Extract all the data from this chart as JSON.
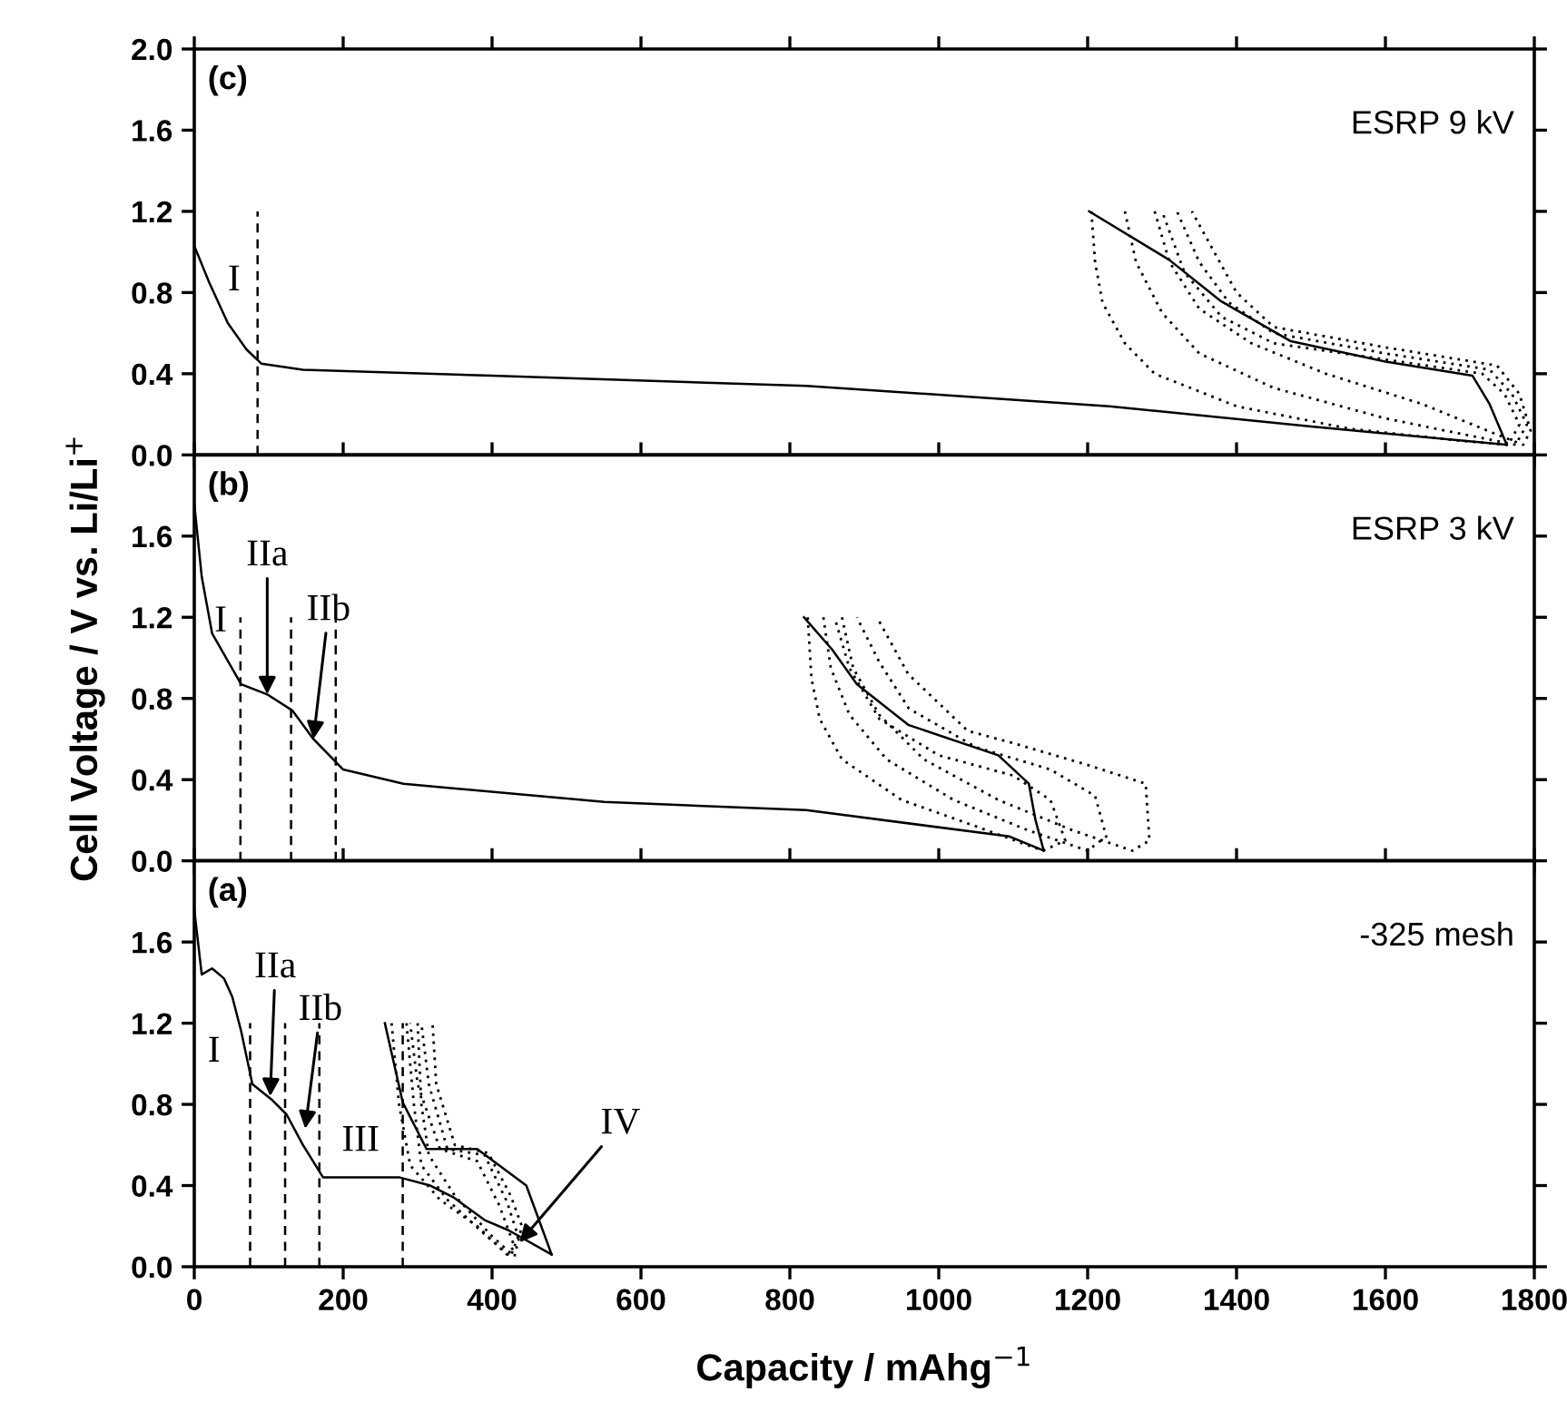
{
  "chart_data": [
    {
      "type": "line",
      "xlim": [
        0,
        1800
      ],
      "xticks": [
        0,
        200,
        400,
        600,
        800,
        1000,
        1200,
        1400,
        1600,
        1800
      ],
      "ylim": [
        0,
        2.0
      ],
      "yticks": [
        {
          "value": 0,
          "label": "0.0"
        },
        {
          "value": 0.4,
          "label": "0.4"
        },
        {
          "value": 0.8,
          "label": "0.8"
        },
        {
          "value": 1.2,
          "label": "1.2"
        },
        {
          "value": 1.6,
          "label": "1.6"
        },
        {
          "value": 2.0,
          "label": "2.0"
        }
      ],
      "tick_labels": "y",
      "legend": false,
      "grid": false,
      "annotations": [
        "(c)",
        "ESRP 9 kV",
        "I"
      ],
      "series": [
        {
          "color": "#000000",
          "line_style": "solid",
          "x": [
            0,
            20,
            45,
            70,
            90,
            146,
            400,
            822,
            1229,
            1500,
            1763
          ],
          "values": [
            1.03,
            0.85,
            0.65,
            0.52,
            0.45,
            0.42,
            0.39,
            0.34,
            0.24,
            0.14,
            0.05
          ]
        },
        {
          "color": "#000000",
          "line_style": "solid",
          "x": [
            1763,
            1740,
            1717,
            1600,
            1473,
            1378,
            1310,
            1202
          ],
          "values": [
            0.05,
            0.25,
            0.39,
            0.46,
            0.56,
            0.76,
            0.96,
            1.2
          ]
        },
        {
          "color": "#000000",
          "line_style": "dotted",
          "x": [
            1205,
            1210,
            1220,
            1250,
            1290,
            1400,
            1550,
            1700,
            1765,
            1780,
            1760,
            1730,
            1600,
            1450,
            1380,
            1330,
            1300
          ],
          "values": [
            1.2,
            0.95,
            0.75,
            0.55,
            0.4,
            0.24,
            0.13,
            0.07,
            0.05,
            0.15,
            0.3,
            0.4,
            0.47,
            0.55,
            0.68,
            0.9,
            1.2
          ]
        },
        {
          "color": "#000000",
          "line_style": "dotted",
          "x": [
            1250,
            1265,
            1300,
            1350,
            1450,
            1600,
            1720,
            1775,
            1790,
            1770,
            1740,
            1600,
            1450,
            1390,
            1350,
            1320
          ],
          "values": [
            1.2,
            0.95,
            0.7,
            0.5,
            0.33,
            0.18,
            0.09,
            0.05,
            0.15,
            0.3,
            0.42,
            0.5,
            0.6,
            0.75,
            0.95,
            1.2
          ]
        },
        {
          "color": "#000000",
          "line_style": "dotted",
          "x": [
            1290,
            1310,
            1350,
            1420,
            1520,
            1650,
            1750,
            1785,
            1795,
            1780,
            1750,
            1600,
            1450,
            1400,
            1370,
            1340
          ],
          "values": [
            1.2,
            0.95,
            0.72,
            0.55,
            0.4,
            0.25,
            0.1,
            0.05,
            0.12,
            0.3,
            0.44,
            0.53,
            0.63,
            0.8,
            1.0,
            1.2
          ]
        },
        {
          "color": "#000000",
          "line_style": "dashed",
          "x": [
            85,
            85
          ],
          "values": [
            0,
            1.2
          ]
        }
      ]
    },
    {
      "type": "line",
      "xlim": [
        0,
        1800
      ],
      "xticks": [
        0,
        200,
        400,
        600,
        800,
        1000,
        1200,
        1400,
        1600,
        1800
      ],
      "ylim": [
        0,
        2.0
      ],
      "yticks": [
        {
          "value": 0,
          "label": "0.0"
        },
        {
          "value": 0.4,
          "label": "0.4"
        },
        {
          "value": 0.8,
          "label": "0.8"
        },
        {
          "value": 1.2,
          "label": "1.2"
        },
        {
          "value": 1.6,
          "label": "1.6"
        }
      ],
      "tick_labels": "y",
      "legend": false,
      "grid": false,
      "ylabel": "Cell Voltage / V vs. Li/Li$^{+}$",
      "annotations": [
        "(b)",
        "ESRP 3 kV",
        "I",
        {
          "text": "IIa",
          "x": 98,
          "y": 0.82
        },
        {
          "text": "IIb",
          "x": 160,
          "y": 0.6
        }
      ],
      "series": [
        {
          "color": "#000000",
          "line_style": "solid",
          "x": [
            0,
            10,
            24,
            63,
            98,
            132,
            160,
            200,
            281,
            551,
            822,
            1095,
            1141
          ],
          "values": [
            1.76,
            1.4,
            1.12,
            0.87,
            0.82,
            0.74,
            0.6,
            0.45,
            0.38,
            0.29,
            0.25,
            0.12,
            0.05
          ]
        },
        {
          "color": "#000000",
          "line_style": "solid",
          "x": [
            1141,
            1130,
            1121,
            1080,
            959,
            890,
            857,
            819
          ],
          "values": [
            0.05,
            0.2,
            0.38,
            0.52,
            0.67,
            0.87,
            1.04,
            1.2
          ]
        },
        {
          "color": "#000000",
          "line_style": "dotted",
          "x": [
            824,
            829,
            840,
            870,
            950,
            1050,
            1140,
            1170,
            1150,
            1100,
            1000,
            920,
            880,
            860
          ],
          "values": [
            1.2,
            0.9,
            0.7,
            0.5,
            0.3,
            0.17,
            0.05,
            0.1,
            0.3,
            0.42,
            0.52,
            0.7,
            0.95,
            1.2
          ]
        },
        {
          "color": "#000000",
          "line_style": "dotted",
          "x": [
            845,
            855,
            880,
            930,
            1020,
            1120,
            1200,
            1225,
            1210,
            1150,
            1050,
            960,
            920,
            890
          ],
          "values": [
            1.2,
            0.95,
            0.72,
            0.5,
            0.3,
            0.15,
            0.05,
            0.12,
            0.32,
            0.45,
            0.56,
            0.75,
            0.98,
            1.2
          ]
        },
        {
          "color": "#000000",
          "line_style": "dotted",
          "x": [
            870,
            885,
            920,
            980,
            1080,
            1180,
            1260,
            1283,
            1278,
            1202,
            1100,
            1039,
            959,
            917
          ],
          "values": [
            1.2,
            0.95,
            0.72,
            0.5,
            0.3,
            0.15,
            0.05,
            0.1,
            0.38,
            0.47,
            0.58,
            0.64,
            0.92,
            1.2
          ]
        },
        {
          "color": "#000000",
          "line_style": "dashed",
          "x": [
            62,
            62
          ],
          "values": [
            0,
            1.2
          ]
        },
        {
          "color": "#000000",
          "line_style": "dashed",
          "x": [
            130,
            130
          ],
          "values": [
            0,
            1.2
          ]
        },
        {
          "color": "#000000",
          "line_style": "dashed",
          "x": [
            190,
            190
          ],
          "values": [
            0,
            1.2
          ]
        }
      ]
    },
    {
      "type": "line",
      "xlim": [
        0,
        1800
      ],
      "xticks": [
        0,
        200,
        400,
        600,
        800,
        1000,
        1200,
        1400,
        1600,
        1800
      ],
      "ylim": [
        0,
        2.0
      ],
      "yticks": [
        {
          "value": 0,
          "label": "0.0"
        },
        {
          "value": 0.4,
          "label": "0.4"
        },
        {
          "value": 0.8,
          "label": "0.8"
        },
        {
          "value": 1.2,
          "label": "1.2"
        },
        {
          "value": 1.6,
          "label": "1.6"
        }
      ],
      "legend": false,
      "grid": false,
      "xlabel": "Capacity / mAhg$^{−1}$",
      "annotations": [
        "(a)",
        "-325 mesh",
        "I",
        {
          "text": "IIa",
          "x": 102,
          "y": 0.84
        },
        {
          "text": "IIb",
          "x": 149,
          "y": 0.68
        },
        "III",
        {
          "text": "IV",
          "x": 437,
          "y": 0.12
        }
      ],
      "series": [
        {
          "color": "#000000",
          "line_style": "solid",
          "x": [
            0,
            10,
            24,
            40,
            51,
            63,
            78,
            105,
            124,
            146,
            173,
            276,
            317,
            349,
            390,
            422,
            480
          ],
          "values": [
            1.76,
            1.44,
            1.47,
            1.42,
            1.33,
            1.16,
            0.9,
            0.82,
            0.75,
            0.6,
            0.44,
            0.44,
            0.4,
            0.34,
            0.23,
            0.18,
            0.06
          ]
        },
        {
          "color": "#000000",
          "line_style": "solid",
          "x": [
            480,
            446,
            380,
            312,
            280,
            256
          ],
          "values": [
            0.06,
            0.4,
            0.58,
            0.58,
            0.81,
            1.2
          ]
        },
        {
          "color": "#000000",
          "line_style": "dotted",
          "x": [
            265,
            275,
            290,
            330,
            380,
            420,
            430,
            410,
            380,
            330,
            300,
            290
          ],
          "values": [
            1.2,
            0.8,
            0.5,
            0.33,
            0.2,
            0.06,
            0.1,
            0.3,
            0.52,
            0.58,
            0.9,
            1.2
          ]
        },
        {
          "color": "#000000",
          "line_style": "dotted",
          "x": [
            285,
            295,
            305,
            340,
            390,
            425,
            435,
            420,
            390,
            340,
            315,
            305
          ],
          "values": [
            1.2,
            0.8,
            0.5,
            0.33,
            0.16,
            0.05,
            0.15,
            0.32,
            0.55,
            0.58,
            0.9,
            1.2
          ]
        },
        {
          "color": "#000000",
          "line_style": "dotted",
          "x": [
            300,
            305,
            315,
            350,
            400,
            430,
            440,
            425,
            395,
            350,
            325,
            320
          ],
          "values": [
            1.2,
            0.8,
            0.55,
            0.35,
            0.15,
            0.05,
            0.2,
            0.35,
            0.56,
            0.6,
            0.9,
            1.2
          ]
        },
        {
          "color": "#000000",
          "line_style": "dashed",
          "x": [
            75,
            75
          ],
          "values": [
            0,
            1.2
          ]
        },
        {
          "color": "#000000",
          "line_style": "dashed",
          "x": [
            122,
            122
          ],
          "values": [
            0,
            1.2
          ]
        },
        {
          "color": "#000000",
          "line_style": "dashed",
          "x": [
            168,
            168
          ],
          "values": [
            0,
            1.2
          ]
        },
        {
          "color": "#000000",
          "line_style": "dashed",
          "x": [
            280,
            280
          ],
          "values": [
            0,
            1.2
          ]
        }
      ]
    }
  ]
}
